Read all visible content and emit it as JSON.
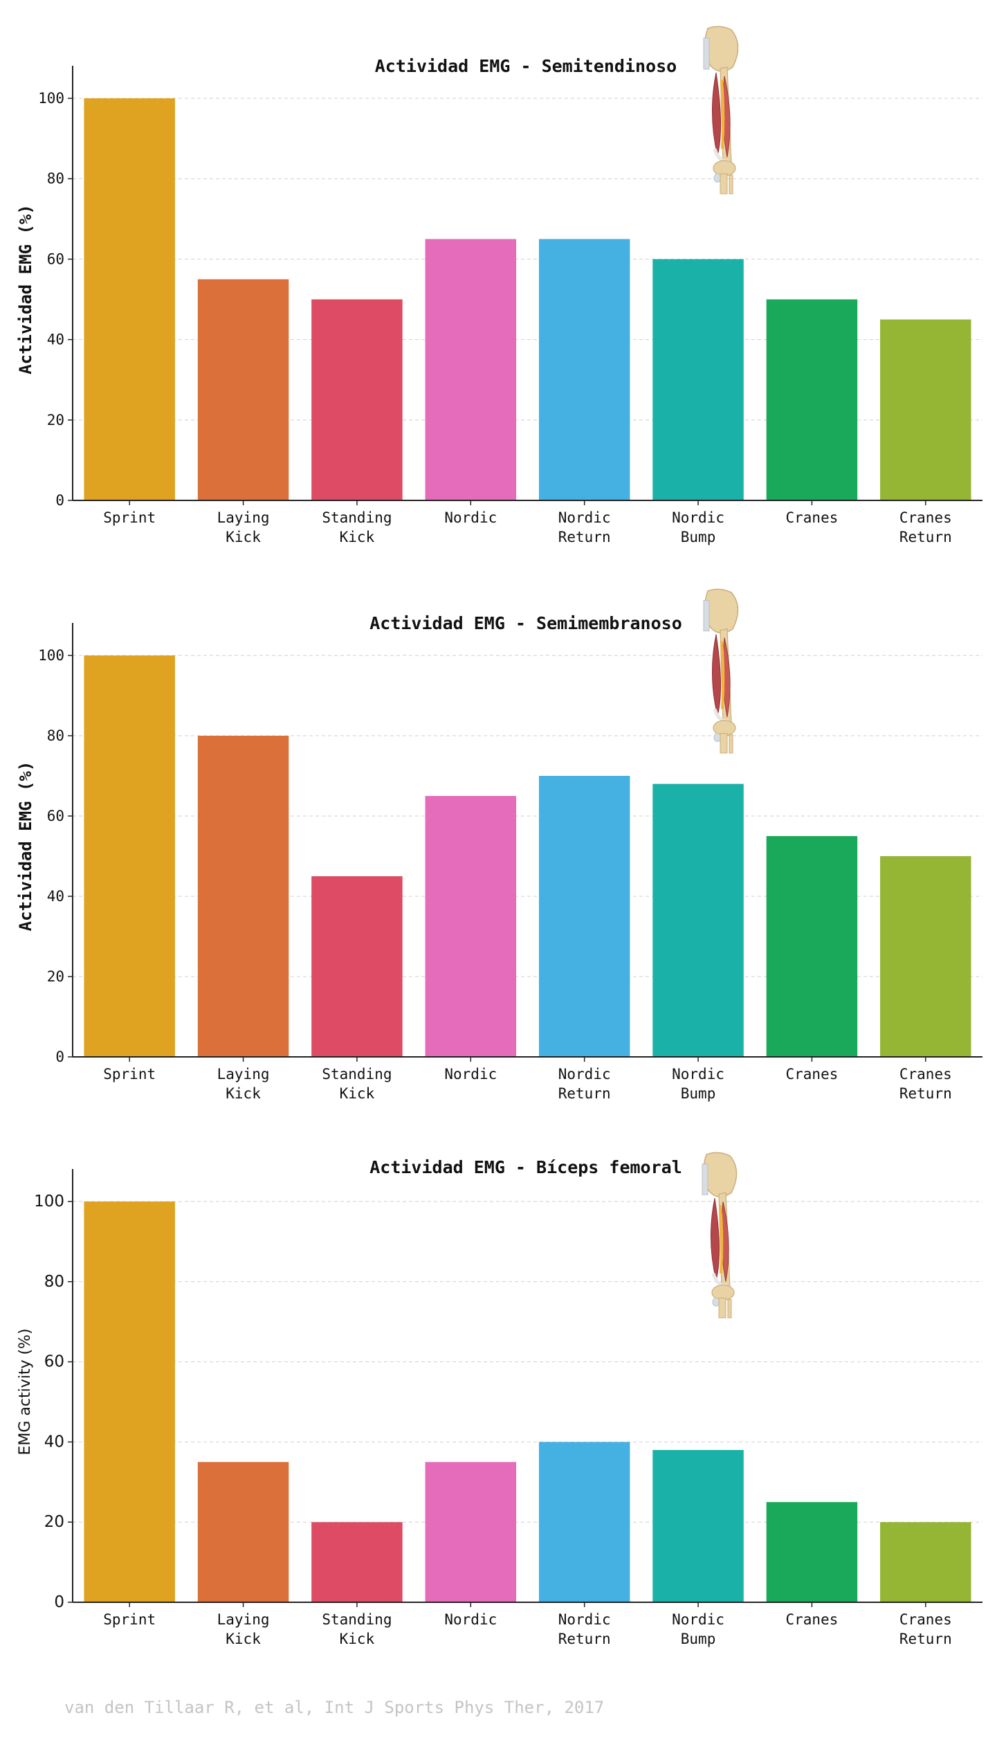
{
  "chart_data": [
    {
      "type": "bar",
      "title": "Actividad EMG - Semitendinoso",
      "ylabel": "Actividad EMG (%)",
      "xlabel": "",
      "categories": [
        "Sprint",
        "Laying\nKick",
        "Standing\nKick",
        "Nordic",
        "Nordic\nReturn",
        "Nordic\nBump",
        "Cranes",
        "Cranes\nReturn"
      ],
      "values": [
        100,
        55,
        50,
        65,
        65,
        60,
        50,
        45
      ],
      "colors": [
        "#DFA321",
        "#DC703B",
        "#DD4B65",
        "#E46CBA",
        "#45B1E2",
        "#1AB2A8",
        "#1AA95A",
        "#95B535"
      ],
      "ylim": [
        0,
        105
      ],
      "yticks": [
        0,
        20,
        40,
        60,
        80,
        100
      ],
      "grid": true,
      "image": "hamstring-leg-illustration"
    },
    {
      "type": "bar",
      "title": "Actividad EMG - Semimembranoso",
      "ylabel": "Actividad EMG (%)",
      "xlabel": "",
      "categories": [
        "Sprint",
        "Laying\nKick",
        "Standing\nKick",
        "Nordic",
        "Nordic\nReturn",
        "Nordic\nBump",
        "Cranes",
        "Cranes\nReturn"
      ],
      "values": [
        100,
        80,
        45,
        65,
        70,
        68,
        55,
        50
      ],
      "colors": [
        "#DFA321",
        "#DC703B",
        "#DD4B65",
        "#E46CBA",
        "#45B1E2",
        "#1AB2A8",
        "#1AA95A",
        "#95B535"
      ],
      "ylim": [
        0,
        105
      ],
      "yticks": [
        0,
        20,
        40,
        60,
        80,
        100
      ],
      "grid": true,
      "image": "hamstring-leg-illustration"
    },
    {
      "type": "bar",
      "title": "Actividad EMG - Bíceps femoral",
      "ylabel": "EMG activity (%)",
      "xlabel": "",
      "categories": [
        "Sprint",
        "Laying\nKick",
        "Standing\nKick",
        "Nordic",
        "Nordic\nReturn",
        "Nordic\nBump",
        "Cranes",
        "Cranes\nReturn"
      ],
      "values": [
        100,
        35,
        20,
        35,
        40,
        38,
        25,
        20
      ],
      "colors": [
        "#DFA321",
        "#DC703B",
        "#DD4B65",
        "#E46CBA",
        "#45B1E2",
        "#1AB2A8",
        "#1AA95A",
        "#95B535"
      ],
      "ylim": [
        0,
        105
      ],
      "yticks": [
        0,
        20,
        40,
        60,
        80,
        100
      ],
      "grid": true,
      "image": "hamstring-leg-illustration"
    }
  ],
  "citation": "van den Tillaar R, et al, Int J Sports Phys Ther, 2017"
}
